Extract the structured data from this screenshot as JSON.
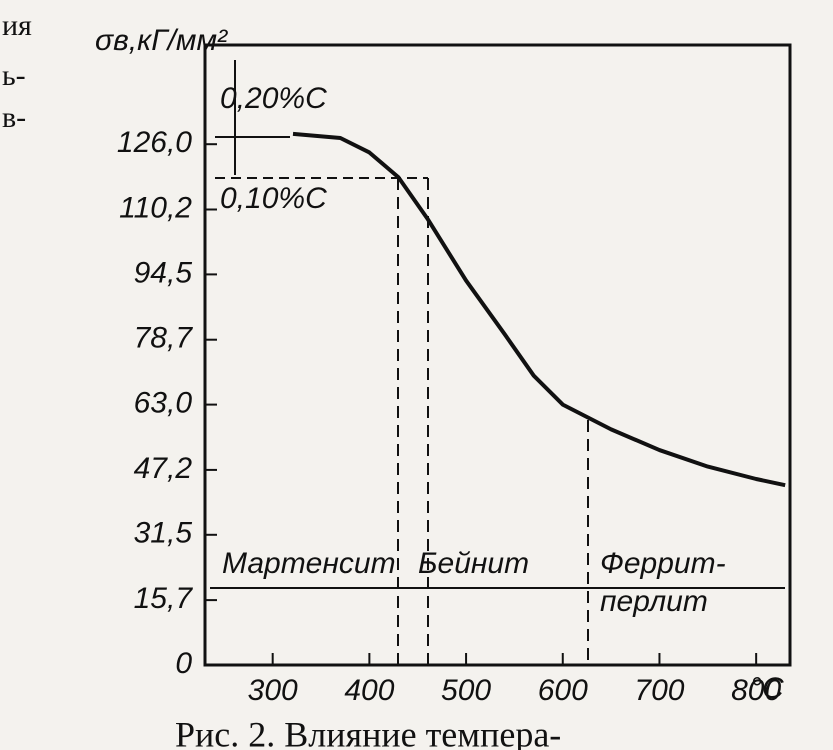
{
  "chart_data": {
    "type": "line",
    "y_axis_label": "σв,кГ/мм²",
    "x_unit_label": "°C",
    "annotations": [
      "0,20%C",
      "0,10%C",
      "Мартенсит",
      "Бейнит",
      "Феррит-",
      "перлит"
    ],
    "caption": "Рис. 2. Влияние темпера-",
    "margin_text": [
      "ия",
      "ь-",
      "в-"
    ],
    "series": [
      {
        "name": "σв",
        "color": "#111111",
        "x": [
          321,
          370,
          400,
          430,
          460,
          500,
          540,
          570,
          600,
          650,
          700,
          750,
          800,
          830
        ],
        "values": [
          128.5,
          127.5,
          124,
          118,
          108,
          93,
          80,
          70,
          63,
          57,
          52,
          48,
          45,
          43.5
        ]
      }
    ],
    "xlim": [
      230,
      835
    ],
    "ylim": [
      0,
      150
    ],
    "xticks": [
      300,
      400,
      500,
      600,
      700,
      800
    ],
    "yticks": [
      0,
      {
        "value": 15.7,
        "label": "15,7"
      },
      {
        "value": 31.5,
        "label": "31,5"
      },
      {
        "value": 47.2,
        "label": "47,2"
      },
      {
        "value": 63.0,
        "label": "63,0"
      },
      {
        "value": 78.7,
        "label": "78,7"
      },
      {
        "value": 94.5,
        "label": "94,5"
      },
      {
        "value": 110.2,
        "label": "110,2"
      },
      {
        "value": 126.0,
        "label": "126,0"
      }
    ],
    "grid": false
  }
}
